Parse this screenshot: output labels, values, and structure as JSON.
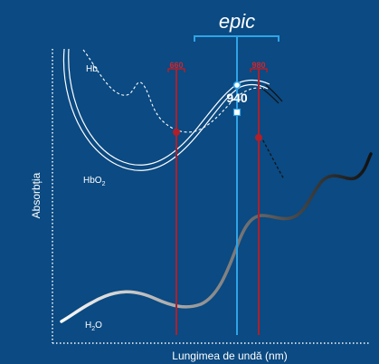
{
  "brand": "epic",
  "axes": {
    "y_label": "Absorbția",
    "x_label": "Lungimea de undă (nm)"
  },
  "curves": {
    "hb": "Hb",
    "hbo2_main": "HbO",
    "hbo2_sub": "2",
    "h2o_main": "H",
    "h2o_sub": "2",
    "h2o_tail": "O"
  },
  "wavelengths": {
    "w660": "660",
    "w940": "940",
    "w980": "980"
  },
  "colors": {
    "background": "#0b4a82",
    "epic_blue": "#2fa4e7",
    "marker_red": "#b01f2a",
    "label_red": "#d0252e"
  }
}
